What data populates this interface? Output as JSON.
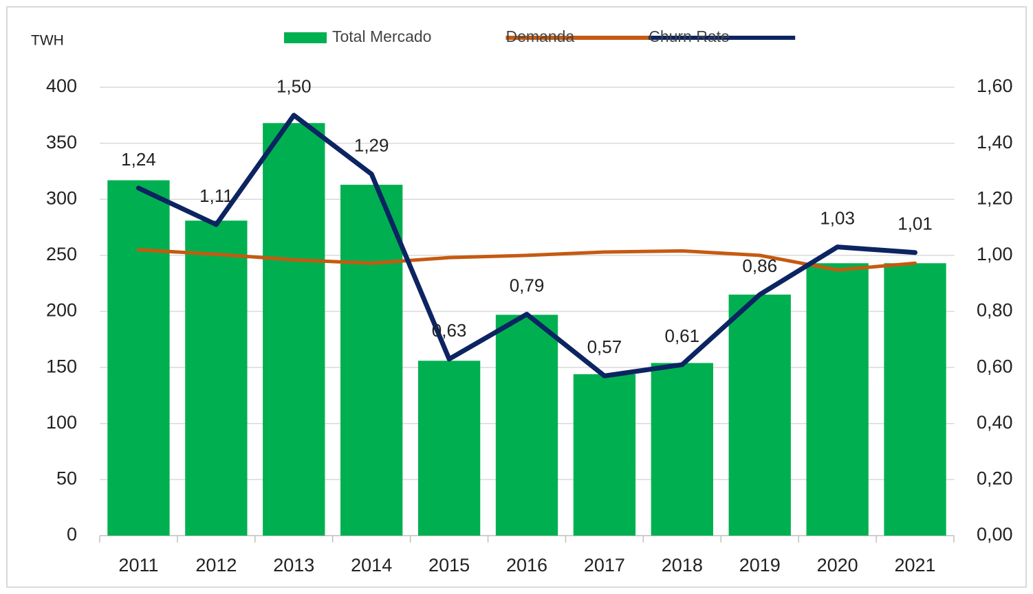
{
  "chart_data": {
    "type": "bar",
    "y_label": "TWH",
    "categories": [
      "2011",
      "2012",
      "2013",
      "2014",
      "2015",
      "2016",
      "2017",
      "2018",
      "2019",
      "2020",
      "2021"
    ],
    "series": [
      {
        "name": "Total Mercado",
        "type": "bar",
        "color": "#00b050",
        "values": [
          317,
          281,
          368,
          313,
          156,
          197,
          144,
          154,
          215,
          243,
          243
        ]
      },
      {
        "name": "Demanda",
        "type": "line",
        "color": "#c55a11",
        "values": [
          255,
          251,
          246,
          243,
          248,
          250,
          253,
          254,
          250,
          237,
          243
        ]
      },
      {
        "name": "Churn Rate",
        "type": "line",
        "axis": "y2",
        "color": "#0c2461",
        "values": [
          1.24,
          1.11,
          1.5,
          1.29,
          0.63,
          0.79,
          0.57,
          0.61,
          0.86,
          1.03,
          1.01
        ],
        "value_labels": [
          "1,24",
          "1,11",
          "1,50",
          "1,29",
          "0,63",
          "0,79",
          "0,57",
          "0,61",
          "0,86",
          "1,03",
          "1,01"
        ]
      }
    ],
    "ylim": [
      0,
      400
    ],
    "yticks": [
      0,
      50,
      100,
      150,
      200,
      250,
      300,
      350,
      400
    ],
    "y2lim": [
      0,
      1.6
    ],
    "y2ticks": [
      {
        "value": 0,
        "label": "0,00"
      },
      {
        "value": 0.2,
        "label": "0,20"
      },
      {
        "value": 0.4,
        "label": "0,40"
      },
      {
        "value": 0.6,
        "label": "0,60"
      },
      {
        "value": 0.8,
        "label": "0,80"
      },
      {
        "value": 1,
        "label": "1,00"
      },
      {
        "value": 1.2,
        "label": "1,20"
      },
      {
        "value": 1.4,
        "label": "1,40"
      },
      {
        "value": 1.6,
        "label": "1,60"
      }
    ],
    "grid": true,
    "legend": "top"
  }
}
